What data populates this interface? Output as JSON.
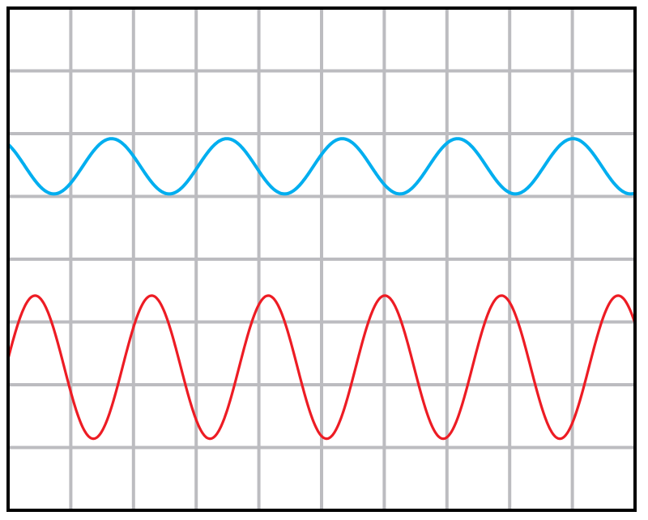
{
  "chart_data": {
    "type": "line",
    "grid": true,
    "grid_divisions": {
      "horizontal": 10,
      "vertical": 8
    },
    "x_range_div": [
      0,
      10
    ],
    "y_range_div": [
      0,
      8
    ],
    "series": [
      {
        "color": "#00aeef",
        "waveform": "sine",
        "center_div_from_top": 2.52,
        "amplitude_div": 0.44,
        "period_div": 1.84,
        "first_peak_div": 1.65
      },
      {
        "color": "#ed1c24",
        "waveform": "sine",
        "center_div_from_top": 5.72,
        "amplitude_div": 1.14,
        "period_div": 1.86,
        "first_peak_div": 0.43
      }
    ]
  },
  "colors": {
    "grid": "#bcbcc0",
    "frame": "#000000",
    "background": "#ffffff"
  }
}
